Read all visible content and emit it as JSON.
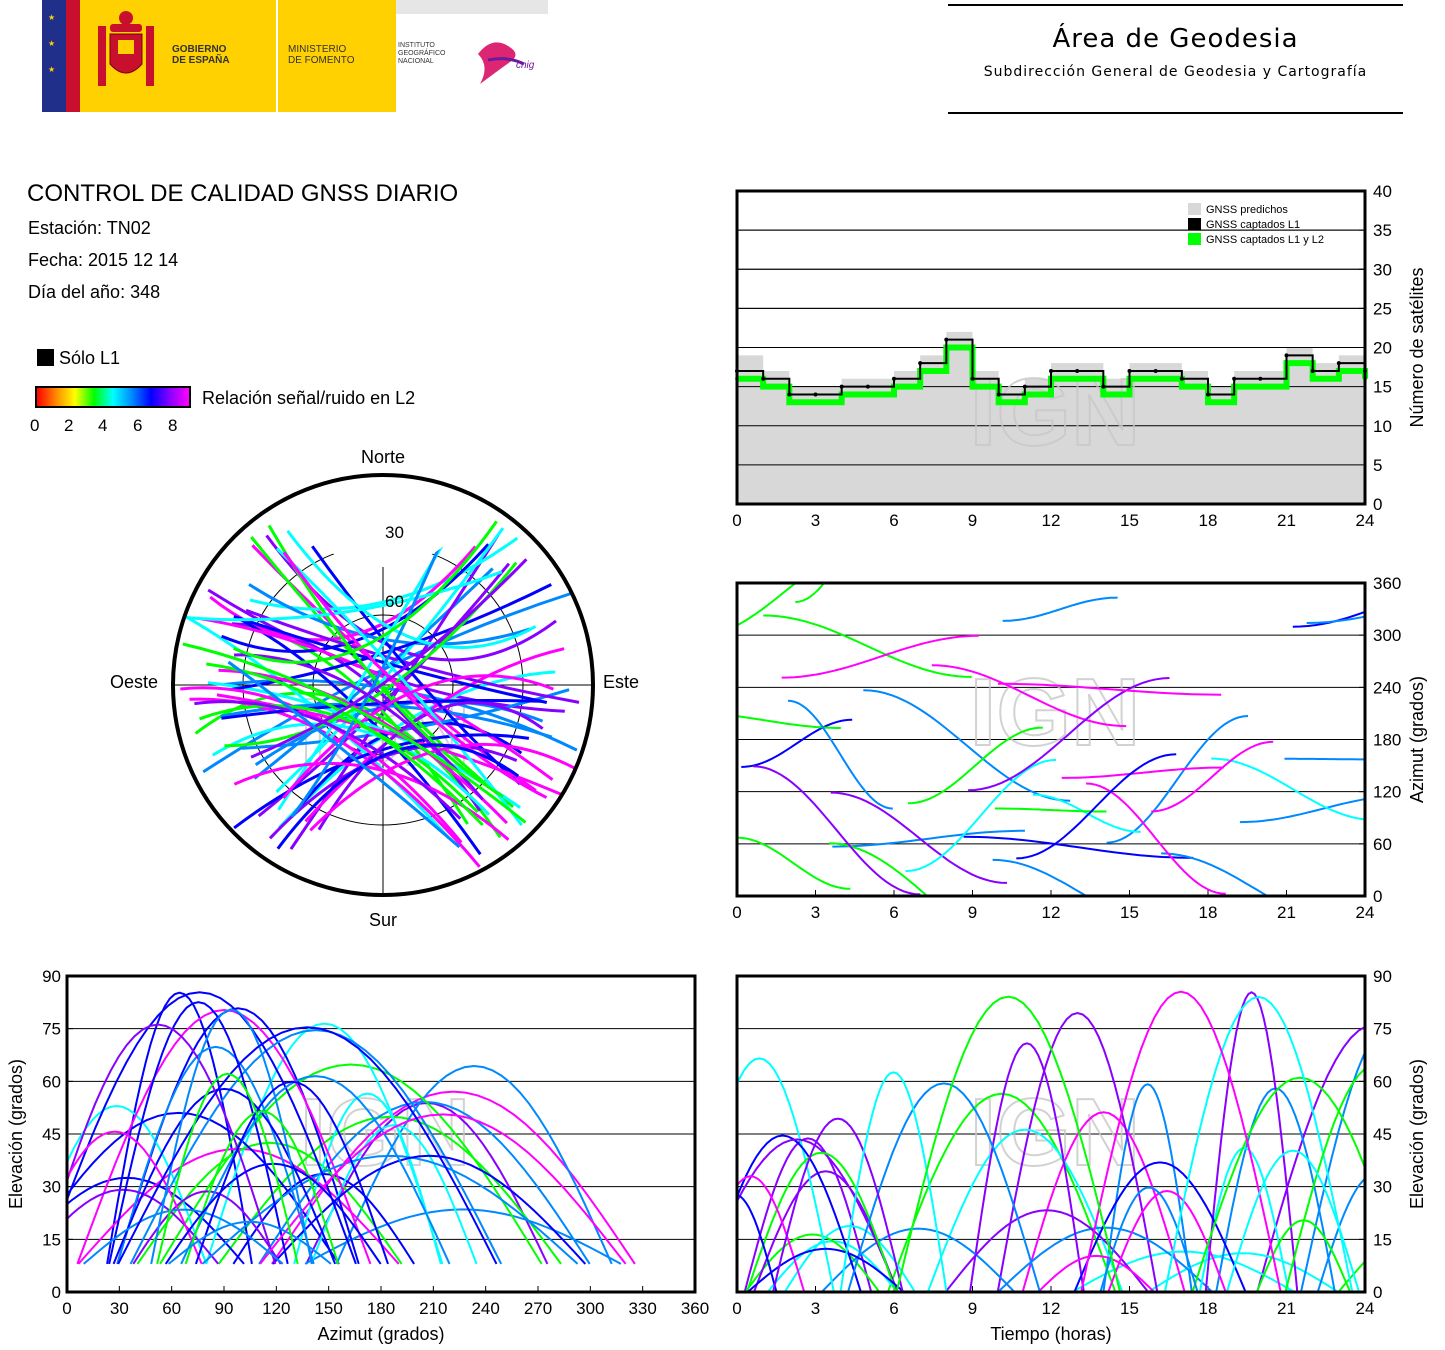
{
  "header": {
    "gov_line1": "GOBIERNO",
    "gov_line2": "DE ESPAÑA",
    "min_line1": "MINISTERIO",
    "min_line2": "DE FOMENTO",
    "inst_line1": "INSTITUTO",
    "inst_line2": "GEOGRÁFICO",
    "inst_line3": "NACIONAL",
    "cnig": "cnig",
    "area_title": "Área de Geodesia",
    "area_subtitle": "Subdirección General de Geodesia y Cartografía"
  },
  "report": {
    "title": "CONTROL DE CALIDAD GNSS DIARIO",
    "station": "Estación: TN02",
    "date": "Fecha: 2015 12 14",
    "doy": "Día del año: 348"
  },
  "legend": {
    "solo_l1": "Sólo L1",
    "snr_label": "Relación señal/ruido en L2",
    "snr_ticks": [
      "0",
      "2",
      "4",
      "6",
      "8"
    ],
    "snr_colors": [
      "#ff0000",
      "#ff8800",
      "#ffff00",
      "#00ff00",
      "#00ffff",
      "#0088ff",
      "#0000ff",
      "#8800ff",
      "#ff00ff"
    ]
  },
  "watermark": "IGN",
  "polar": {
    "north": "Norte",
    "south": "Sur",
    "west": "Oeste",
    "east": "Este",
    "ring_labels": [
      "30",
      "60"
    ]
  },
  "chart_data": [
    {
      "type": "line",
      "id": "satellites",
      "title": "",
      "xlabel": "",
      "ylabel": "Número de satélites",
      "xlim": [
        0,
        24
      ],
      "ylim": [
        0,
        40
      ],
      "xticks": [
        "0",
        "3",
        "6",
        "9",
        "12",
        "15",
        "18",
        "21",
        "24"
      ],
      "yticks": [
        "0",
        "5",
        "10",
        "15",
        "20",
        "25",
        "30",
        "35",
        "40"
      ],
      "legend": [
        "GNSS predichos",
        "GNSS captados L1",
        "GNSS captados L1 y L2"
      ],
      "legend_position": "top-right",
      "series_colors": [
        "#d8d8d8",
        "#000000",
        "#00ff00"
      ],
      "x": [
        0,
        1,
        2,
        3,
        4,
        5,
        6,
        7,
        8,
        9,
        10,
        11,
        12,
        13,
        14,
        15,
        16,
        17,
        18,
        19,
        20,
        21,
        22,
        23,
        24
      ],
      "series": [
        {
          "name": "GNSS predichos",
          "values": [
            19,
            17,
            15,
            15,
            16,
            16,
            17,
            19,
            22,
            17,
            15,
            16,
            18,
            18,
            16,
            18,
            18,
            17,
            15,
            17,
            17,
            20,
            18,
            19,
            18
          ]
        },
        {
          "name": "GNSS captados L1",
          "values": [
            17,
            16,
            14,
            14,
            15,
            15,
            16,
            18,
            21,
            16,
            14,
            15,
            17,
            17,
            15,
            17,
            17,
            16,
            14,
            16,
            16,
            19,
            17,
            18,
            17
          ]
        },
        {
          "name": "GNSS captados L1 y L2",
          "values": [
            16,
            15,
            13,
            13,
            14,
            14,
            15,
            17,
            20,
            15,
            13,
            14,
            16,
            16,
            14,
            16,
            16,
            15,
            13,
            15,
            15,
            18,
            16,
            17,
            16
          ]
        }
      ]
    },
    {
      "type": "scatter",
      "id": "azimuth-time",
      "xlabel": "",
      "ylabel": "Azimut (grados)",
      "xlim": [
        0,
        24
      ],
      "ylim": [
        0,
        360
      ],
      "xticks": [
        "0",
        "3",
        "6",
        "9",
        "12",
        "15",
        "18",
        "21",
        "24"
      ],
      "yticks": [
        "0",
        "60",
        "120",
        "180",
        "240",
        "300",
        "360"
      ]
    },
    {
      "type": "scatter",
      "id": "elevation-azimuth",
      "xlabel": "Azimut (grados)",
      "ylabel": "Elevación (grados)",
      "xlim": [
        0,
        360
      ],
      "ylim": [
        0,
        90
      ],
      "xticks": [
        "0",
        "30",
        "60",
        "90",
        "120",
        "150",
        "180",
        "210",
        "240",
        "270",
        "300",
        "330",
        "360"
      ],
      "yticks": [
        "0",
        "15",
        "30",
        "45",
        "60",
        "75",
        "90"
      ]
    },
    {
      "type": "scatter",
      "id": "elevation-time",
      "xlabel": "Tiempo (horas)",
      "ylabel": "Elevación (grados)",
      "xlim": [
        0,
        24
      ],
      "ylim": [
        0,
        90
      ],
      "xticks": [
        "0",
        "3",
        "6",
        "9",
        "12",
        "15",
        "18",
        "21",
        "24"
      ],
      "yticks": [
        "0",
        "15",
        "30",
        "45",
        "60",
        "75",
        "90"
      ]
    },
    {
      "type": "scatter",
      "id": "skyplot",
      "xlabel": "",
      "ylabel": ""
    }
  ]
}
